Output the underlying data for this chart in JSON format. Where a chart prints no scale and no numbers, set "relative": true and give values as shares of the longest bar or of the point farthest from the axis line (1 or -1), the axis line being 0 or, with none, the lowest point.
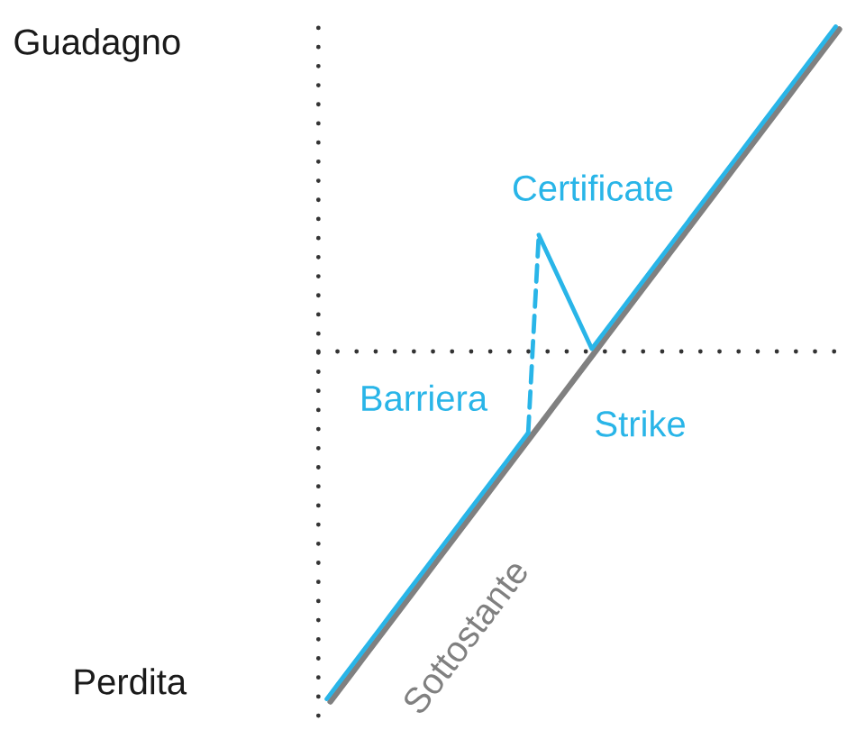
{
  "chart_data": {
    "type": "line",
    "relative": true,
    "categories": [
      null,
      null,
      null,
      null,
      null,
      null,
      null,
      null,
      null,
      null,
      null,
      null,
      null,
      null,
      null,
      null,
      null,
      null,
      null,
      null,
      null,
      null,
      null,
      null,
      null,
      null,
      null,
      null,
      null,
      null,
      null,
      null,
      null,
      null,
      null,
      null,
      null,
      null,
      null,
      null,
      null,
      null,
      null,
      null,
      null,
      null,
      null,
      null,
      null
    ],
    "annotations": [
      "Guadagno",
      "Perdita",
      "Barriera",
      "Strike"
    ],
    "ref_lines": [
      {
        "axis": "y",
        "value": 0,
        "color": "#333333",
        "line_style": "dotted"
      }
    ],
    "series": [
      {
        "name": "Sottostante",
        "color": "#808080",
        "values": [
          -1,
          -0.96,
          -0.92,
          -0.88,
          -0.84,
          -0.8,
          -0.76,
          -0.72,
          -0.68,
          -0.64,
          -0.6,
          -0.56,
          -0.52,
          -0.48,
          -0.44,
          -0.4,
          -0.36,
          -0.32,
          -0.28,
          -0.24,
          -0.2,
          -0.16,
          -0.12,
          -0.08,
          -0.04,
          0,
          0.04,
          0.08,
          0.12,
          0.16,
          0.2,
          0.24,
          0.28,
          0.32,
          0.36,
          0.4,
          0.44,
          0.48,
          0.52,
          0.56,
          0.6,
          0.64,
          0.68,
          0.72,
          0.76,
          0.8,
          0.84,
          0.88,
          0.92
        ]
      },
      {
        "color": "#29b5e8",
        "values": [
          -1,
          -0.96,
          -0.92,
          -0.88,
          -0.84,
          -0.8,
          -0.76,
          -0.72,
          -0.68,
          -0.64,
          -0.6,
          -0.56,
          -0.52,
          -0.48,
          -0.44,
          -0.4,
          -0.36,
          -0.32,
          -0.28,
          -0.24,
          null,
          null,
          null,
          null,
          null,
          null,
          null,
          null,
          null,
          null,
          null,
          null,
          null,
          null,
          null,
          null,
          null,
          null,
          null,
          null,
          null,
          null,
          null,
          null,
          null,
          null,
          null,
          null,
          null
        ]
      },
      {
        "color": "#29b5e8",
        "line_style": "dashed",
        "values": [
          null,
          null,
          null,
          null,
          null,
          null,
          null,
          null,
          null,
          null,
          null,
          null,
          null,
          null,
          null,
          null,
          null,
          null,
          null,
          -0.24,
          0.325,
          null,
          null,
          null,
          null,
          null,
          null,
          null,
          null,
          null,
          null,
          null,
          null,
          null,
          null,
          null,
          null,
          null,
          null,
          null,
          null,
          null,
          null,
          null,
          null,
          null,
          null,
          null,
          null
        ]
      },
      {
        "name": "Certificate",
        "color": "#29b5e8",
        "values": [
          null,
          null,
          null,
          null,
          null,
          null,
          null,
          null,
          null,
          null,
          null,
          null,
          null,
          null,
          null,
          null,
          null,
          null,
          null,
          null,
          0.325,
          0.26,
          0.195,
          0.13,
          0.065,
          0,
          0.04,
          0.08,
          0.12,
          0.16,
          0.2,
          0.24,
          0.28,
          0.32,
          0.36,
          0.4,
          0.44,
          0.48,
          0.52,
          0.56,
          0.6,
          0.64,
          0.68,
          0.72,
          0.76,
          0.8,
          0.84,
          0.88,
          0.92
        ]
      }
    ]
  }
}
